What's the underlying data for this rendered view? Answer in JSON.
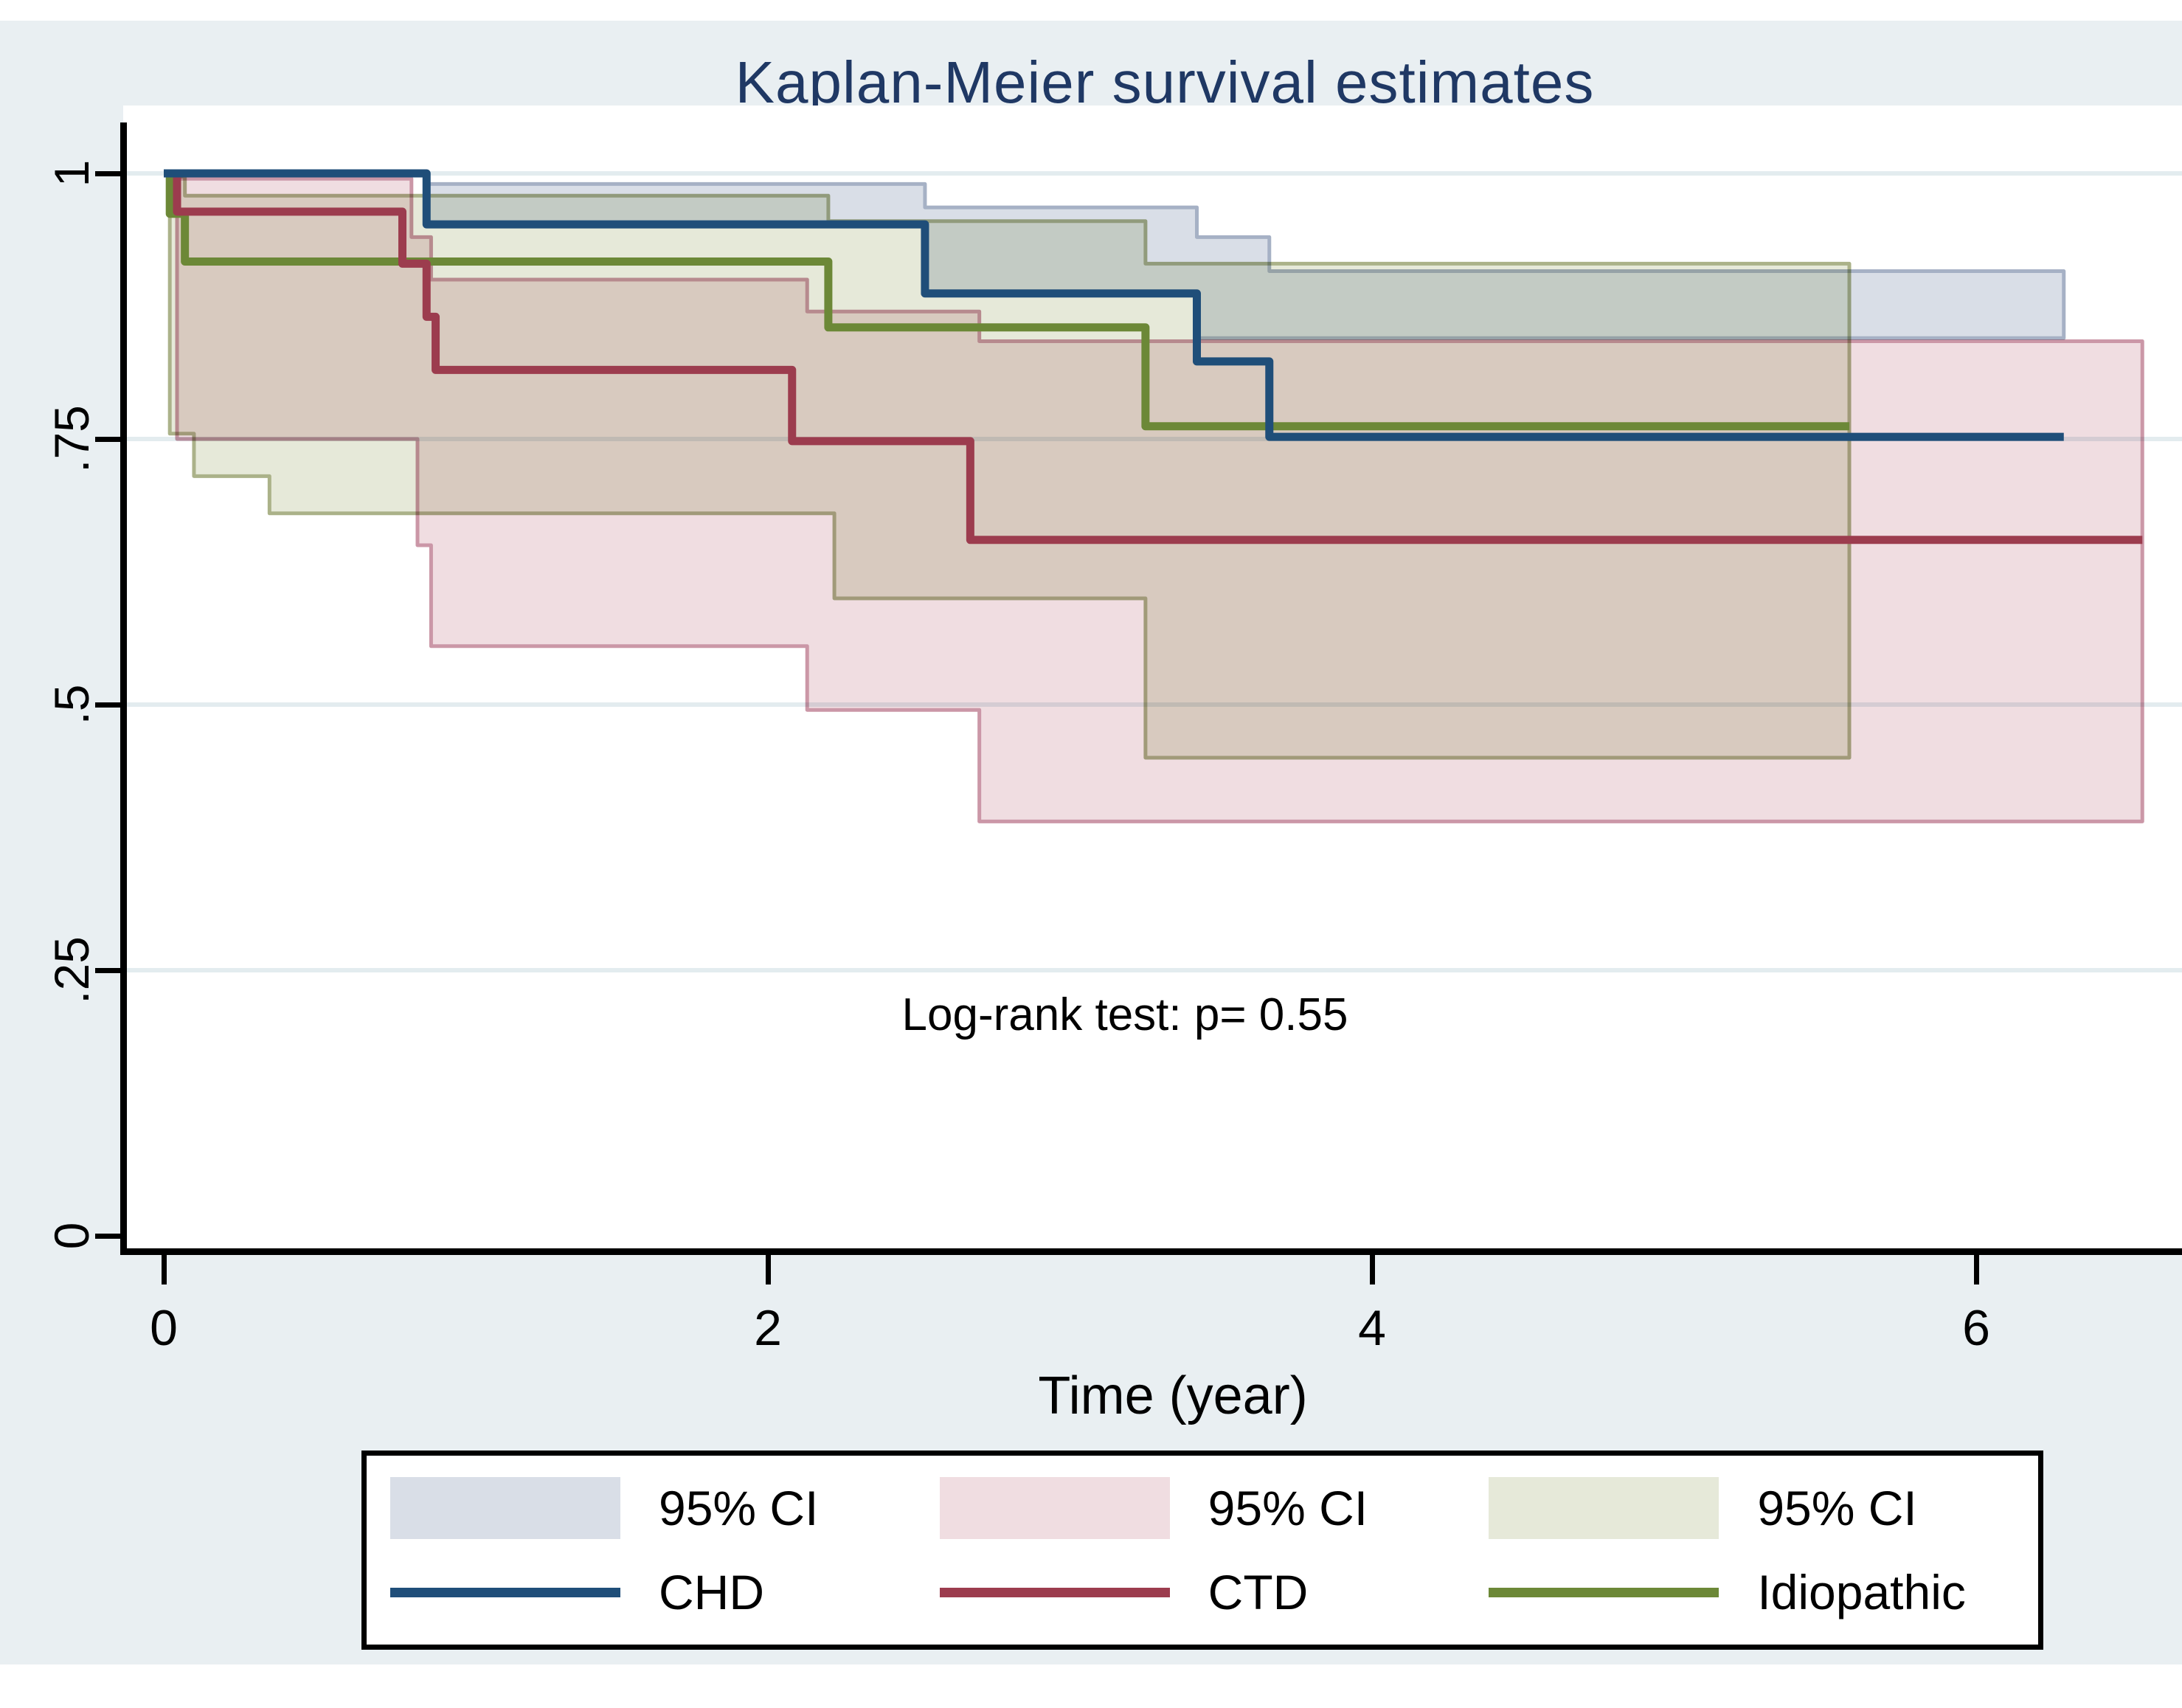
{
  "title": "Kaplan-Meier survival estimates",
  "annotation": "Log-rank test: p= 0.55",
  "x_axis": {
    "label": "Time (year)",
    "tick_labels": [
      "0",
      "2",
      "4",
      "6"
    ],
    "tick_values": [
      0,
      2,
      4,
      6
    ],
    "range": [
      0,
      6.68
    ]
  },
  "y_axis": {
    "tick_labels": [
      "1",
      ".75",
      ".5",
      ".25",
      "0"
    ],
    "tick_values": [
      1,
      0.75,
      0.5,
      0.25,
      0
    ],
    "range": [
      0,
      1
    ],
    "gridlines": [
      1,
      0.75,
      0.5,
      0.25
    ]
  },
  "colors": {
    "navy": "#1F4E79",
    "maroon": "#9C3C4E",
    "olive": "#6C8837",
    "blue_fill": "#D9DEE7",
    "blue_edge": "#A6B1C5",
    "pink_fill": "#F0DDE1",
    "pink_edge": "#CB97A7",
    "olive_fill": "#E6E9D9",
    "olive_edge": "#ABB289",
    "grid": "#E3ECEF",
    "title_text": "#1F3864",
    "fig_bg": "#E9EFF2",
    "axis": "#000000"
  },
  "chart_data": {
    "type": "line",
    "subtype": "kaplan-meier-step",
    "title": "Kaplan-Meier survival estimates",
    "xlabel": "Time (year)",
    "ylabel": "",
    "xlim": [
      0,
      6.68
    ],
    "ylim": [
      0,
      1
    ],
    "grid": "horizontal",
    "legend_position": "below",
    "series": [
      {
        "name": "CHD",
        "color_key": "navy",
        "fill_key": "blue_fill",
        "edge_key": "blue_edge",
        "line": [
          [
            0,
            1
          ],
          [
            0.87,
            0.952
          ],
          [
            2.52,
            0.887
          ],
          [
            3.42,
            0.823
          ],
          [
            3.66,
            0.752
          ]
        ],
        "line_end": 6.29,
        "ci_label": "95% CI",
        "ci_upper": [
          [
            0.87,
            0.99
          ],
          [
            2.52,
            0.968
          ],
          [
            3.42,
            0.94
          ],
          [
            3.66,
            0.908
          ]
        ],
        "ci_lower": [
          [
            0.87,
            0.952
          ],
          [
            2.52,
            0.887
          ],
          [
            3.42,
            0.845
          ]
        ],
        "ci_end": 6.29
      },
      {
        "name": "CTD",
        "color_key": "maroon",
        "fill_key": "pink_fill",
        "edge_key": "pink_edge",
        "line": [
          [
            0,
            1
          ],
          [
            0.044,
            0.964
          ],
          [
            0.79,
            0.915
          ],
          [
            0.87,
            0.865
          ],
          [
            0.9,
            0.815
          ],
          [
            2.08,
            0.748
          ],
          [
            2.67,
            0.655
          ]
        ],
        "line_end": 6.55,
        "ci_label": "95% CI",
        "ci_upper": [
          [
            0.044,
            0.995
          ],
          [
            0.82,
            0.94
          ],
          [
            0.885,
            0.9
          ],
          [
            2.13,
            0.87
          ],
          [
            2.7,
            0.842
          ]
        ],
        "ci_lower": [
          [
            0.044,
            0.75
          ],
          [
            0.84,
            0.65
          ],
          [
            0.885,
            0.555
          ],
          [
            2.13,
            0.495
          ],
          [
            2.7,
            0.39
          ]
        ],
        "ci_end": 6.55
      },
      {
        "name": "Idiopathic",
        "color_key": "olive",
        "fill_key": "olive_fill",
        "edge_key": "olive_edge",
        "line": [
          [
            0,
            1
          ],
          [
            0.02,
            0.962
          ],
          [
            0.07,
            0.917
          ],
          [
            2.2,
            0.855
          ],
          [
            3.25,
            0.762
          ]
        ],
        "line_end": 5.58,
        "ci_label": "95% CI",
        "ci_upper": [
          [
            0.02,
            0.997
          ],
          [
            0.07,
            0.979
          ],
          [
            2.2,
            0.955
          ],
          [
            3.25,
            0.915
          ]
        ],
        "ci_lower": [
          [
            0.02,
            0.755
          ],
          [
            0.1,
            0.715
          ],
          [
            0.35,
            0.68
          ],
          [
            2.22,
            0.6
          ],
          [
            3.25,
            0.45
          ]
        ],
        "ci_end": 5.58
      }
    ]
  },
  "legend": {
    "entries": [
      {
        "kind": "swatch",
        "color_key": "blue_fill",
        "label": "95% CI"
      },
      {
        "kind": "swatch",
        "color_key": "pink_fill",
        "label": "95% CI"
      },
      {
        "kind": "swatch",
        "color_key": "olive_fill",
        "label": "95% CI"
      },
      {
        "kind": "line",
        "color_key": "navy",
        "label": "CHD"
      },
      {
        "kind": "line",
        "color_key": "maroon",
        "label": "CTD"
      },
      {
        "kind": "line",
        "color_key": "olive",
        "label": "Idiopathic"
      }
    ]
  }
}
